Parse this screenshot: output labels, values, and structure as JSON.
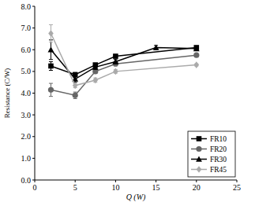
{
  "chart_data": {
    "type": "line",
    "x_label": "Q (W)",
    "y_label": "Resistance (C/W)",
    "xlim": [
      0,
      25
    ],
    "ylim": [
      0,
      8
    ],
    "xticks": [
      0,
      5,
      10,
      15,
      20,
      25
    ],
    "yticks": [
      {
        "value": 0,
        "label": "0.0"
      },
      {
        "value": 1,
        "label": "1.0"
      },
      {
        "value": 2,
        "label": "2.0"
      },
      {
        "value": 3,
        "label": "3.0"
      },
      {
        "value": 4,
        "label": "4.0"
      },
      {
        "value": 5,
        "label": "5.0"
      },
      {
        "value": 6,
        "label": "6.0"
      },
      {
        "value": 7,
        "label": "7.0"
      },
      {
        "value": 8,
        "label": "8.0"
      }
    ],
    "grid": false,
    "legend": "bottom-right",
    "series": [
      {
        "name": "FR10",
        "color": "#000000",
        "marker": "square",
        "x": [
          2,
          5,
          7.5,
          10,
          20
        ],
        "values": [
          5.25,
          4.85,
          5.3,
          5.7,
          6.1
        ],
        "errors": [
          0.2,
          0.1,
          0.08,
          0.08,
          0.05
        ]
      },
      {
        "name": "FR20",
        "color": "#666666",
        "marker": "circle",
        "x": [
          2,
          5,
          7.5,
          10,
          20
        ],
        "values": [
          4.15,
          3.9,
          5.0,
          5.35,
          5.75
        ],
        "errors": [
          0.3,
          0.15,
          0.08,
          0.08,
          0.05
        ]
      },
      {
        "name": "FR30",
        "color": "#000000",
        "marker": "triangle",
        "x": [
          2,
          5,
          7.5,
          10,
          15,
          20
        ],
        "values": [
          6.0,
          4.65,
          5.2,
          5.45,
          6.1,
          6.05
        ],
        "errors": [
          0.45,
          0.15,
          0.1,
          0.1,
          0.1,
          0.05
        ]
      },
      {
        "name": "FR45",
        "color": "#aaaaaa",
        "marker": "diamond",
        "x": [
          2,
          5,
          7.5,
          10,
          20
        ],
        "values": [
          6.75,
          4.35,
          4.6,
          5.0,
          5.3
        ],
        "errors": [
          0.4,
          0.1,
          0.1,
          0.08,
          0.05
        ]
      }
    ]
  }
}
